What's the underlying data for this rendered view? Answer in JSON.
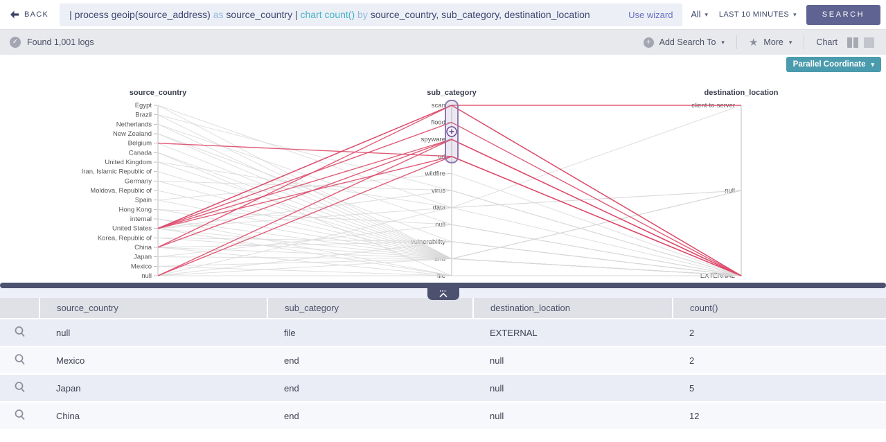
{
  "colors": {
    "accent_teal": "#4a9bad",
    "accent_indigo": "#5e6391",
    "highlight_line": "#dd4a6a",
    "line": "#d7d7d7",
    "axis": "#c8c8c8",
    "brush": "#8e77ad",
    "query_base": "#3c4670",
    "query_keyword": "#93b8e0",
    "query_function": "#45b3c9"
  },
  "topbar": {
    "back_label": "BACK",
    "query_segments": [
      {
        "text": "| process geoip(source_address) ",
        "style": "base"
      },
      {
        "text": "as ",
        "style": "keyword"
      },
      {
        "text": "source_country ",
        "style": "base"
      },
      {
        "text": "| ",
        "style": "base"
      },
      {
        "text": "chart count() ",
        "style": "function"
      },
      {
        "text": "by ",
        "style": "keyword"
      },
      {
        "text": "source_country, sub_category, destination_location",
        "style": "base"
      }
    ],
    "use_wizard": "Use wizard",
    "scope": "All",
    "time_range": "LAST 10 MINUTES",
    "search_button": "SEARCH"
  },
  "statusbar": {
    "found_text": "Found 1,001 logs",
    "add_search_to": "Add Search To",
    "more": "More",
    "chart_label": "Chart"
  },
  "chart_data": {
    "type": "parallel-coordinates",
    "selector_label": "Parallel Coordinate",
    "axes": [
      {
        "name": "source_country",
        "categories": [
          "Egypt",
          "Brazil",
          "Netherlands",
          "New Zealand",
          "Belgium",
          "Canada",
          "United Kingdom",
          "Iran, Islamic Republic of",
          "Germany",
          "Moldova, Republic of",
          "Spain",
          "Hong Kong",
          "internal",
          "United States",
          "Korea, Republic of",
          "China",
          "Japan",
          "Mexico",
          "null"
        ]
      },
      {
        "name": "sub_category",
        "categories": [
          "scan",
          "flood",
          "spyware",
          "url",
          "wildfire",
          "virus",
          "data",
          "null",
          "vulnerability",
          "end",
          "file"
        ]
      },
      {
        "name": "destination_location",
        "categories": [
          "client-to-server",
          "null",
          "EXTERNAL"
        ]
      }
    ],
    "brush": {
      "axis": "sub_category",
      "from": "scan",
      "to": "url"
    },
    "highlighted_paths": [
      [
        "Belgium",
        "url",
        "EXTERNAL"
      ],
      [
        "United States",
        "scan",
        "client-to-server"
      ],
      [
        "United States",
        "scan",
        "EXTERNAL"
      ],
      [
        "United States",
        "flood",
        "EXTERNAL"
      ],
      [
        "United States",
        "spyware",
        "EXTERNAL"
      ],
      [
        "United States",
        "url",
        "EXTERNAL"
      ],
      [
        "China",
        "scan",
        "EXTERNAL"
      ],
      [
        "China",
        "spyware",
        "EXTERNAL"
      ],
      [
        "null",
        "spyware",
        "EXTERNAL"
      ],
      [
        "null",
        "url",
        "EXTERNAL"
      ]
    ],
    "paths": [
      [
        "Egypt",
        "end",
        "EXTERNAL"
      ],
      [
        "Egypt",
        "data",
        "null"
      ],
      [
        "Brazil",
        "end",
        "EXTERNAL"
      ],
      [
        "Brazil",
        "virus",
        "EXTERNAL"
      ],
      [
        "Netherlands",
        "end",
        "EXTERNAL"
      ],
      [
        "Netherlands",
        "null",
        "EXTERNAL"
      ],
      [
        "New Zealand",
        "vulnerability",
        "EXTERNAL"
      ],
      [
        "New Zealand",
        "end",
        "EXTERNAL"
      ],
      [
        "Belgium",
        "end",
        "EXTERNAL"
      ],
      [
        "Canada",
        "end",
        "EXTERNAL"
      ],
      [
        "Canada",
        "file",
        "EXTERNAL"
      ],
      [
        "United Kingdom",
        "end",
        "EXTERNAL"
      ],
      [
        "United Kingdom",
        "data",
        "null"
      ],
      [
        "Iran, Islamic Republic of",
        "end",
        "EXTERNAL"
      ],
      [
        "Germany",
        "end",
        "EXTERNAL"
      ],
      [
        "Germany",
        "virus",
        "EXTERNAL"
      ],
      [
        "Moldova, Republic of",
        "end",
        "EXTERNAL"
      ],
      [
        "Spain",
        "end",
        "EXTERNAL"
      ],
      [
        "Spain",
        "wildfire",
        "EXTERNAL"
      ],
      [
        "Hong Kong",
        "end",
        "EXTERNAL"
      ],
      [
        "Hong Kong",
        "null",
        "EXTERNAL"
      ],
      [
        "internal",
        "end",
        "null"
      ],
      [
        "internal",
        "file",
        "EXTERNAL"
      ],
      [
        "United States",
        "end",
        "EXTERNAL"
      ],
      [
        "United States",
        "file",
        "EXTERNAL"
      ],
      [
        "United States",
        "virus",
        "EXTERNAL"
      ],
      [
        "United States",
        "data",
        "client-to-server"
      ],
      [
        "Korea, Republic of",
        "end",
        "EXTERNAL"
      ],
      [
        "Korea, Republic of",
        "vulnerability",
        "EXTERNAL"
      ],
      [
        "China",
        "end",
        "null"
      ],
      [
        "China",
        "file",
        "EXTERNAL"
      ],
      [
        "China",
        "vulnerability",
        "EXTERNAL"
      ],
      [
        "Japan",
        "end",
        "null"
      ],
      [
        "Japan",
        "null",
        "EXTERNAL"
      ],
      [
        "Mexico",
        "end",
        "null"
      ],
      [
        "Mexico",
        "file",
        "EXTERNAL"
      ],
      [
        "null",
        "end",
        "EXTERNAL"
      ],
      [
        "null",
        "file",
        "EXTERNAL"
      ],
      [
        "null",
        "data",
        "EXTERNAL"
      ],
      [
        "null",
        "vulnerability",
        "EXTERNAL"
      ]
    ]
  },
  "table": {
    "columns": [
      "source_country",
      "sub_category",
      "destination_location",
      "count()"
    ],
    "rows": [
      [
        "null",
        "file",
        "EXTERNAL",
        "2"
      ],
      [
        "Mexico",
        "end",
        "null",
        "2"
      ],
      [
        "Japan",
        "end",
        "null",
        "5"
      ],
      [
        "China",
        "end",
        "null",
        "12"
      ]
    ]
  }
}
